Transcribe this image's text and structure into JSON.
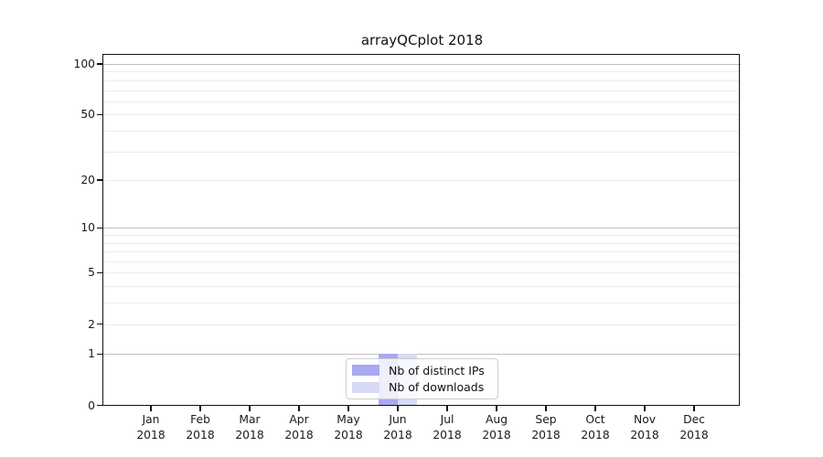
{
  "figure": {
    "background": "#ffffff",
    "frame_color": "#111111"
  },
  "chart_data": {
    "type": "bar",
    "title": "arrayQCplot 2018",
    "categories": [
      "Jan 2018",
      "Feb 2018",
      "Mar 2018",
      "Apr 2018",
      "May 2018",
      "Jun 2018",
      "Jul 2018",
      "Aug 2018",
      "Sep 2018",
      "Oct 2018",
      "Nov 2018",
      "Dec 2018"
    ],
    "x_tick_months": [
      "Jan",
      "Feb",
      "Mar",
      "Apr",
      "May",
      "Jun",
      "Jul",
      "Aug",
      "Sep",
      "Oct",
      "Nov",
      "Dec"
    ],
    "x_tick_year": "2018",
    "series": [
      {
        "name": "Nb of distinct IPs",
        "color": "#a8a9ee",
        "values": [
          0,
          0,
          0,
          0,
          0,
          1,
          0,
          0,
          0,
          0,
          0,
          0
        ]
      },
      {
        "name": "Nb of downloads",
        "color": "#d8d9f4",
        "values": [
          0,
          0,
          0,
          0,
          0,
          1,
          0,
          0,
          0,
          0,
          0,
          0
        ]
      }
    ],
    "xlabel": "",
    "ylabel": "",
    "y_axis": {
      "scale": "log1p",
      "tick_values": [
        0,
        1,
        2,
        5,
        10,
        20,
        50,
        100
      ],
      "tick_labels": [
        "0",
        "1",
        "2",
        "5",
        "10",
        "20",
        "50",
        "100"
      ],
      "range": [
        0,
        110
      ],
      "major_gridlines": [
        1,
        10,
        100
      ],
      "minor_gridlines": [
        2,
        3,
        4,
        5,
        6,
        7,
        8,
        9,
        20,
        30,
        40,
        50,
        60,
        70,
        80,
        90
      ],
      "major_grid_color": "#c0c0c0",
      "minor_grid_color": "#ebebeb"
    },
    "legend": {
      "position": "bottom-center",
      "entries": [
        "Nb of distinct IPs",
        "Nb of downloads"
      ]
    },
    "grid": "on"
  }
}
